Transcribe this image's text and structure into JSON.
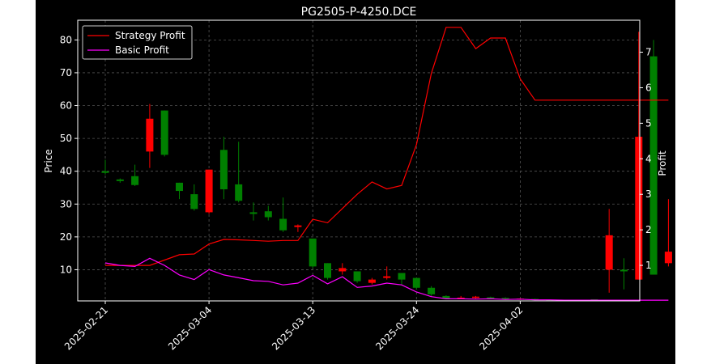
{
  "chart_data": {
    "type": "candlestick+line",
    "title": "PG2505-P-4250.DCE",
    "ylabel_left": "Price",
    "ylabel_right": "Profit",
    "xlabel": "",
    "ylim_left": [
      0.5,
      86
    ],
    "ylim_right": [
      0.0,
      7.9
    ],
    "yticks_left": [
      10,
      20,
      30,
      40,
      50,
      60,
      70,
      80
    ],
    "yticks_right": [
      1,
      2,
      3,
      4,
      5,
      6,
      7
    ],
    "xtick_labels": [
      {
        "label": "2025-02-21",
        "index": 0
      },
      {
        "label": "2025-03-04",
        "index": 7
      },
      {
        "label": "2025-03-13",
        "index": 14
      },
      {
        "label": "2025-03-24",
        "index": 21
      },
      {
        "label": "2025-04-02",
        "index": 28
      }
    ],
    "grid": true,
    "legend_position": "top-left",
    "colors": {
      "background": "#000000",
      "up": "#008000",
      "down": "#ff0000",
      "strategy": "#ff0000",
      "basic": "#ff00ff",
      "grid": "#555555"
    },
    "candles": [
      {
        "o": 39.5,
        "c": 40.0,
        "h": 43.5,
        "l": 39.0
      },
      {
        "o": 37.0,
        "c": 37.5,
        "h": 37.8,
        "l": 36.5
      },
      {
        "o": 35.8,
        "c": 38.5,
        "h": 42.0,
        "l": 35.5
      },
      {
        "o": 56.0,
        "c": 46.0,
        "h": 60.5,
        "l": 41.0
      },
      {
        "o": 45.0,
        "c": 58.5,
        "h": 58.5,
        "l": 44.5
      },
      {
        "o": 34.0,
        "c": 36.5,
        "h": 36.5,
        "l": 31.5
      },
      {
        "o": 28.5,
        "c": 33.0,
        "h": 36.0,
        "l": 28.0
      },
      {
        "o": 40.5,
        "c": 27.5,
        "h": 40.5,
        "l": 27.0
      },
      {
        "o": 34.5,
        "c": 46.5,
        "h": 50.5,
        "l": 31.5
      },
      {
        "o": 31.0,
        "c": 36.0,
        "h": 49.0,
        "l": 30.5
      },
      {
        "o": 27.0,
        "c": 27.5,
        "h": 30.5,
        "l": 25.0
      },
      {
        "o": 26.0,
        "c": 27.8,
        "h": 29.5,
        "l": 25.0
      },
      {
        "o": 22.0,
        "c": 25.5,
        "h": 32.0,
        "l": 21.5
      },
      {
        "o": 23.5,
        "c": 23.0,
        "h": 23.8,
        "l": 21.5
      },
      {
        "o": 11.0,
        "c": 19.5,
        "h": 19.5,
        "l": 10.5
      },
      {
        "o": 7.5,
        "c": 12.0,
        "h": 12.0,
        "l": 7.0
      },
      {
        "o": 10.5,
        "c": 9.5,
        "h": 12.0,
        "l": 8.5
      },
      {
        "o": 6.5,
        "c": 9.5,
        "h": 9.5,
        "l": 6.0
      },
      {
        "o": 7.0,
        "c": 6.0,
        "h": 7.5,
        "l": 5.5
      },
      {
        "o": 8.0,
        "c": 7.5,
        "h": 11.0,
        "l": 7.0
      },
      {
        "o": 7.0,
        "c": 9.0,
        "h": 9.0,
        "l": 5.5
      },
      {
        "o": 4.5,
        "c": 7.5,
        "h": 7.5,
        "l": 4.0
      },
      {
        "o": 2.5,
        "c": 4.5,
        "h": 5.0,
        "l": 2.0
      },
      {
        "o": 1.2,
        "c": 2.0,
        "h": 2.2,
        "l": 1.0
      },
      {
        "o": 1.5,
        "c": 1.3,
        "h": 2.0,
        "l": 1.0
      },
      {
        "o": 1.8,
        "c": 1.4,
        "h": 2.0,
        "l": 1.2
      },
      {
        "o": 1.2,
        "c": 1.6,
        "h": 1.8,
        "l": 1.0
      },
      {
        "o": 1.0,
        "c": 1.4,
        "h": 1.6,
        "l": 0.8
      },
      {
        "o": 1.2,
        "c": 1.0,
        "h": 1.3,
        "l": 0.8
      },
      {
        "o": 0.8,
        "c": 1.1,
        "h": 1.2,
        "l": 0.7
      },
      {
        "o": 0.8,
        "c": 0.8,
        "h": 0.8,
        "l": 0.8
      },
      {
        "o": 0.8,
        "c": 0.8,
        "h": 0.8,
        "l": 0.8
      },
      {
        "o": 0.8,
        "c": 0.8,
        "h": 0.8,
        "l": 0.8
      },
      {
        "o": 1.0,
        "c": 1.0,
        "h": 1.0,
        "l": 1.0
      },
      {
        "o": 20.5,
        "c": 10.0,
        "h": 28.5,
        "l": 3.0
      },
      {
        "o": 9.5,
        "c": 10.0,
        "h": 13.5,
        "l": 4.0
      },
      {
        "o": 50.5,
        "c": 7.0,
        "h": 82.5,
        "l": 7.0
      },
      {
        "o": 8.5,
        "c": 75.0,
        "h": 80.0,
        "l": 8.5
      },
      {
        "o": 15.5,
        "c": 12.0,
        "h": 31.5,
        "l": 11.0
      }
    ],
    "series": [
      {
        "name": "Strategy Profit",
        "values": [
          1.0,
          1.0,
          1.0,
          1.0,
          1.15,
          1.3,
          1.32,
          1.6,
          1.73,
          1.72,
          1.7,
          1.68,
          1.7,
          1.7,
          2.3,
          2.2,
          2.6,
          3.0,
          3.35,
          3.15,
          3.25,
          4.4,
          6.4,
          7.7,
          7.7,
          7.1,
          7.4,
          7.4,
          6.25,
          5.65,
          5.65,
          5.65,
          5.65,
          5.65,
          5.65,
          5.65,
          5.65,
          5.65,
          5.65
        ]
      },
      {
        "name": "Basic Profit",
        "values": [
          1.07,
          1.0,
          0.97,
          1.2,
          1.0,
          0.73,
          0.6,
          0.88,
          0.73,
          0.65,
          0.57,
          0.55,
          0.45,
          0.5,
          0.72,
          0.48,
          0.68,
          0.38,
          0.42,
          0.5,
          0.45,
          0.25,
          0.12,
          0.06,
          0.06,
          0.05,
          0.06,
          0.04,
          0.05,
          0.03,
          0.03,
          0.02,
          0.02,
          0.02,
          0.02,
          0.02,
          0.02,
          0.02,
          0.02
        ]
      }
    ]
  }
}
